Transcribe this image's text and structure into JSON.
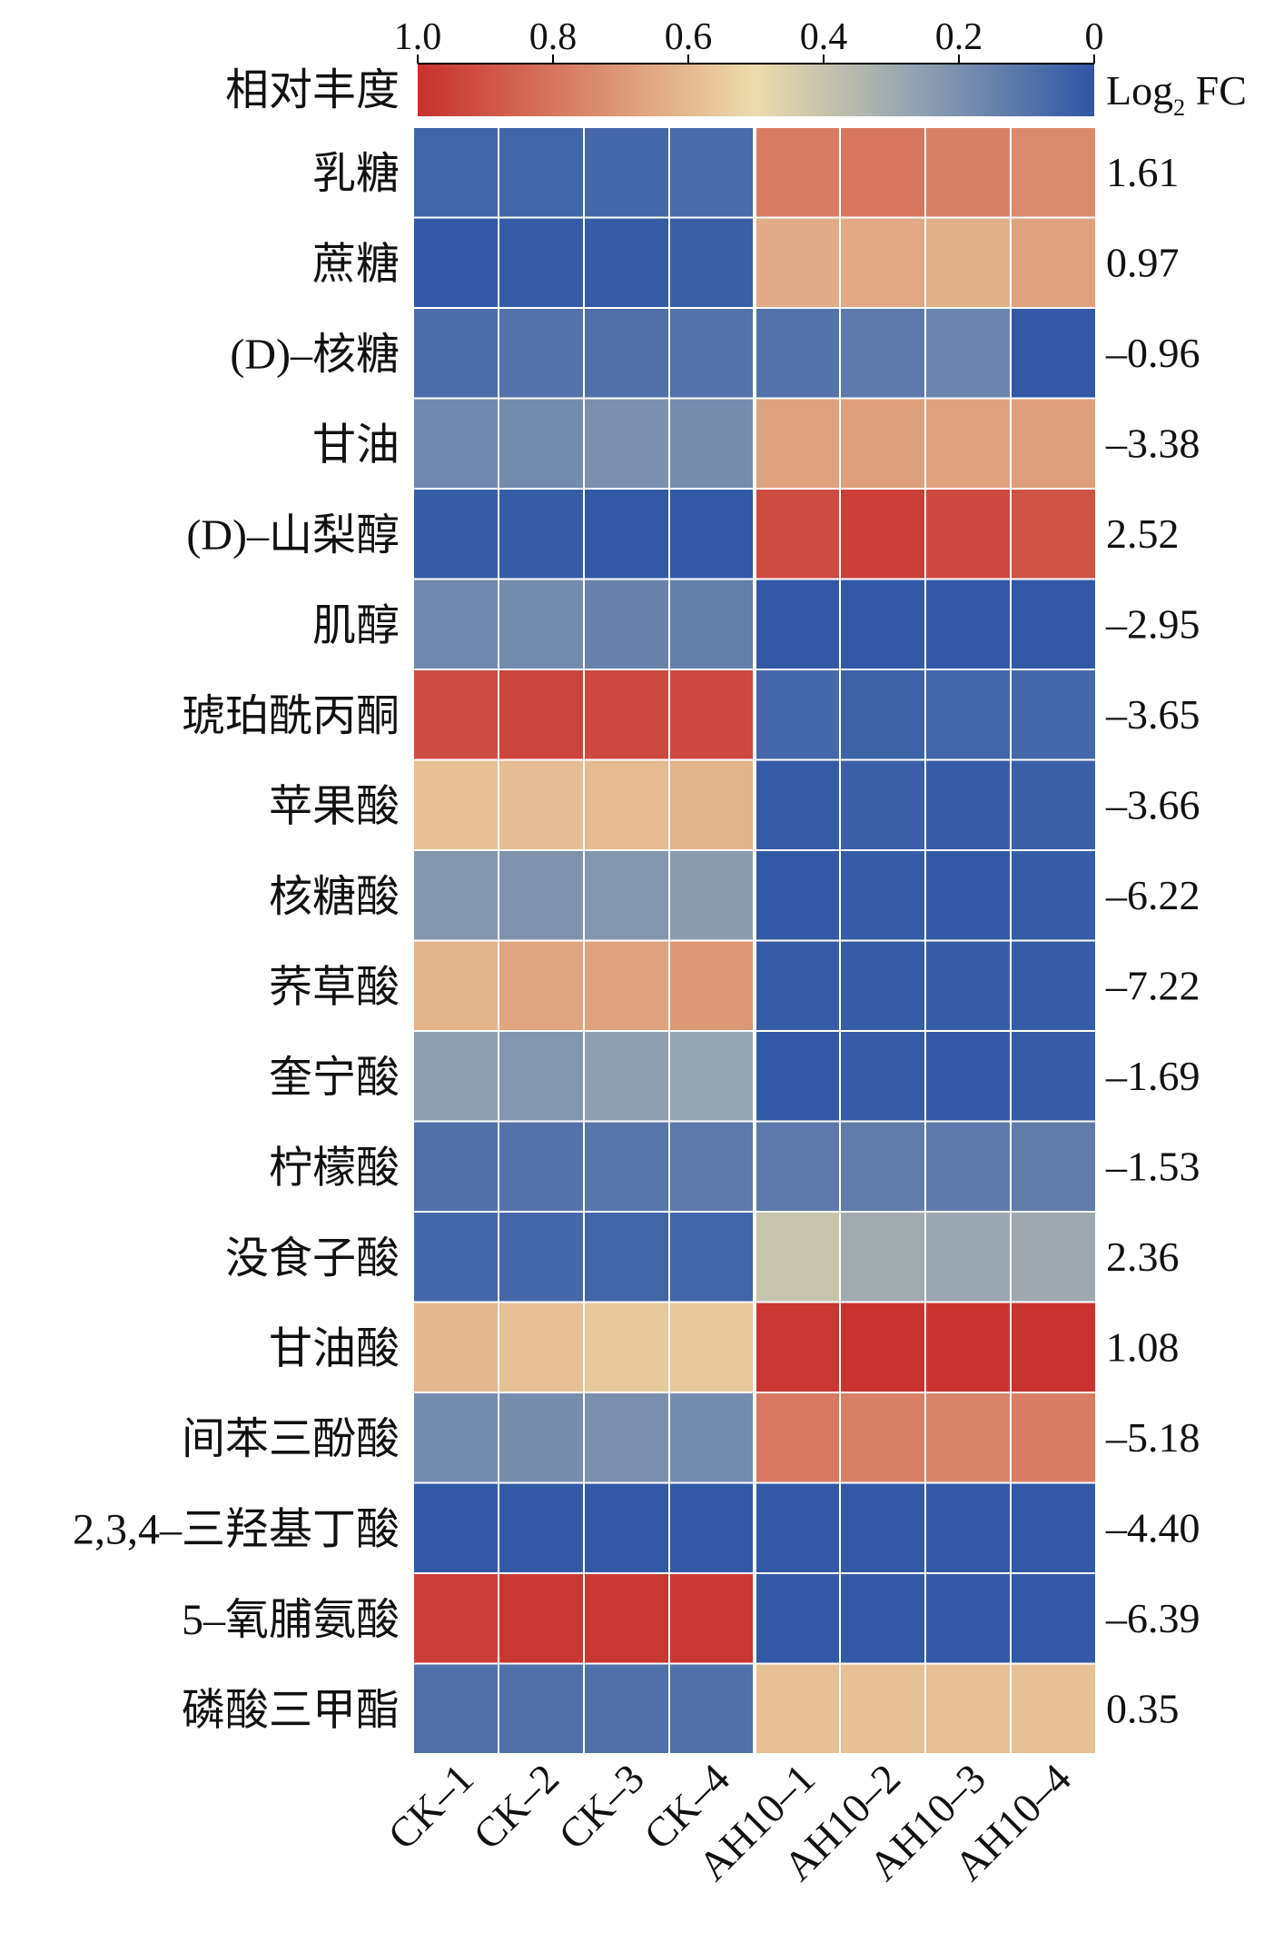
{
  "chart_data": {
    "type": "heatmap",
    "title": "",
    "colorbar": {
      "label": "相对丰度",
      "tick_labels": [
        "1.0",
        "0.8",
        "0.6",
        "0.4",
        "0.2",
        "0"
      ],
      "range": [
        1.0,
        0
      ],
      "colors": [
        "#c8302d",
        "#d9876a",
        "#ecdcab",
        "#8e9fb0",
        "#2f56a6"
      ]
    },
    "fc_header": {
      "base": "Log",
      "sub": "2",
      "tail": " FC"
    },
    "columns": [
      "CK–1",
      "CK–2",
      "CK–3",
      "CK–4",
      "AH10–1",
      "AH10–2",
      "AH10–3",
      "AH10–4"
    ],
    "rows": [
      {
        "label": "乳糖",
        "fc": "1.61",
        "values": [
          0.05,
          0.05,
          0.06,
          0.07,
          0.78,
          0.8,
          0.77,
          0.74
        ]
      },
      {
        "label": "蔗糖",
        "fc": "0.97",
        "values": [
          0.01,
          0.02,
          0.02,
          0.03,
          0.64,
          0.65,
          0.63,
          0.67
        ]
      },
      {
        "label": "(D)–核糖",
        "fc": "–0.96",
        "values": [
          0.08,
          0.1,
          0.09,
          0.1,
          0.1,
          0.12,
          0.16,
          0.01
        ]
      },
      {
        "label": "甘油",
        "fc": "–3.38",
        "values": [
          0.17,
          0.18,
          0.2,
          0.19,
          0.67,
          0.68,
          0.67,
          0.68
        ]
      },
      {
        "label": "(D)–山梨醇",
        "fc": "2.52",
        "values": [
          0.02,
          0.02,
          0.01,
          0.01,
          0.92,
          0.96,
          0.93,
          0.9
        ]
      },
      {
        "label": "肌醇",
        "fc": "–2.95",
        "values": [
          0.17,
          0.18,
          0.15,
          0.14,
          0.01,
          0.01,
          0.01,
          0.01
        ]
      },
      {
        "label": "琥珀酰丙酮",
        "fc": "–3.65",
        "values": [
          0.92,
          0.94,
          0.93,
          0.93,
          0.06,
          0.04,
          0.05,
          0.06
        ]
      },
      {
        "label": "苹果酸",
        "fc": "–3.66",
        "values": [
          0.58,
          0.59,
          0.6,
          0.62,
          0.02,
          0.03,
          0.02,
          0.03
        ]
      },
      {
        "label": "核糖酸",
        "fc": "–6.22",
        "values": [
          0.22,
          0.21,
          0.22,
          0.24,
          0.01,
          0.02,
          0.01,
          0.02
        ]
      },
      {
        "label": "荞草酸",
        "fc": "–7.22",
        "values": [
          0.62,
          0.66,
          0.67,
          0.7,
          0.02,
          0.02,
          0.02,
          0.02
        ]
      },
      {
        "label": "奎宁酸",
        "fc": "–1.69",
        "values": [
          0.25,
          0.22,
          0.25,
          0.27,
          0.01,
          0.02,
          0.01,
          0.02
        ]
      },
      {
        "label": "柠檬酸",
        "fc": "–1.53",
        "values": [
          0.09,
          0.1,
          0.11,
          0.12,
          0.12,
          0.13,
          0.12,
          0.13
        ]
      },
      {
        "label": "没食子酸",
        "fc": "2.36",
        "values": [
          0.06,
          0.06,
          0.05,
          0.05,
          0.4,
          0.3,
          0.28,
          0.29
        ]
      },
      {
        "label": "甘油酸",
        "fc": "1.08",
        "values": [
          0.61,
          0.58,
          0.56,
          0.56,
          0.98,
          0.99,
          0.99,
          0.99
        ]
      },
      {
        "label": "间苯三酚酸",
        "fc": "–5.18",
        "values": [
          0.18,
          0.19,
          0.2,
          0.18,
          0.79,
          0.77,
          0.76,
          0.78
        ]
      },
      {
        "label": "2,3,4–三羟基丁酸",
        "fc": "–4.40",
        "values": [
          0.01,
          0.01,
          0.01,
          0.01,
          0.01,
          0.01,
          0.01,
          0.01
        ]
      },
      {
        "label": "5–氧脯氨酸",
        "fc": "–6.39",
        "values": [
          0.96,
          0.98,
          0.98,
          0.98,
          0.01,
          0.01,
          0.01,
          0.01
        ]
      },
      {
        "label": "磷酸三甲酯",
        "fc": "0.35",
        "values": [
          0.09,
          0.09,
          0.09,
          0.09,
          0.58,
          0.58,
          0.58,
          0.58
        ]
      }
    ]
  }
}
